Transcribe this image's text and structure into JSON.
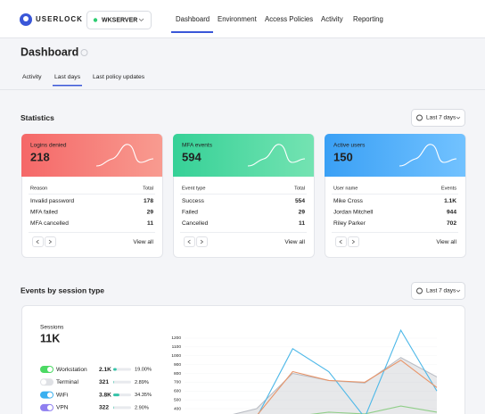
{
  "header": {
    "logo": "USERLOCK",
    "server": "WKSERVER",
    "nav": [
      "Dashboard",
      "Environment",
      "Access Policies",
      "Activity",
      "Reporting"
    ]
  },
  "page": {
    "title": "Dashboard",
    "tabs": [
      "Activity",
      "Last days",
      "Last policy updates"
    ]
  },
  "statistics": {
    "title": "Statistics",
    "range": "Last 7 days",
    "cards": [
      {
        "title": "Logins denied",
        "value": 218,
        "color": [
          "#f56868",
          "#f89b90"
        ],
        "columns": [
          "Reason",
          "Total"
        ],
        "rows": [
          [
            "Invalid password",
            178
          ],
          [
            "MFA failed",
            29
          ],
          [
            "MFA cancelled",
            11
          ]
        ],
        "link": "View all"
      },
      {
        "title": "MFA events",
        "value": 594,
        "color": [
          "#36d197",
          "#74e3b2"
        ],
        "columns": [
          "Event type",
          "Total"
        ],
        "rows": [
          [
            "Success",
            554
          ],
          [
            "Failed",
            29
          ],
          [
            "Cancelled",
            11
          ]
        ],
        "link": "View all"
      },
      {
        "title": "Active users",
        "value": 150,
        "color": [
          "#3aa0f5",
          "#72c2ff"
        ],
        "columns": [
          "User name",
          "Events"
        ],
        "rows": [
          [
            "Mike Cross",
            "1.1K"
          ],
          [
            "Jordan Mitchell",
            944
          ],
          [
            "Riley Parker",
            702
          ]
        ],
        "link": "View all"
      }
    ]
  },
  "events": {
    "title": "Events by session type",
    "range": "Last 7 days",
    "sessions_label": "Sessions",
    "sessions_total": "11K",
    "chart_data": {
      "type": "line",
      "ylim": [
        300,
        1300
      ],
      "yticks": [
        400,
        500,
        600,
        700,
        800,
        900,
        1000,
        1100,
        1200
      ],
      "series": [
        {
          "name": "Workstation",
          "count": "2.1K",
          "share": {
            "value": 19,
            "label": "19.00%"
          },
          "on": true,
          "toggle_color": "#4cd964",
          "color": "#7ad86a",
          "fill": false,
          "values": [
            300,
            300,
            300,
            310,
            360,
            340,
            430,
            360
          ]
        },
        {
          "name": "Terminal",
          "count": "321",
          "share": {
            "value": 2.89,
            "label": "2.89%"
          },
          "on": false,
          "toggle_color": "#dfe1e5",
          "color": "#b9bcc3",
          "fill": true,
          "values": [
            300,
            300,
            400,
            800,
            720,
            690,
            980,
            760
          ]
        },
        {
          "name": "WiFi",
          "count": "3.8K",
          "share": {
            "value": 34.35,
            "label": "34.35%"
          },
          "on": true,
          "toggle_color": "#3ab0f0",
          "color": "#4db8e8",
          "fill": false,
          "values": [
            300,
            300,
            300,
            1080,
            820,
            300,
            1290,
            600
          ]
        },
        {
          "name": "VPN",
          "count": "322",
          "share": {
            "value": 2.9,
            "label": "2.90%"
          },
          "on": true,
          "toggle_color": "#8f7ff0",
          "color": "#e8956a",
          "fill": false,
          "values": [
            300,
            300,
            320,
            820,
            720,
            700,
            950,
            640
          ]
        }
      ]
    }
  }
}
